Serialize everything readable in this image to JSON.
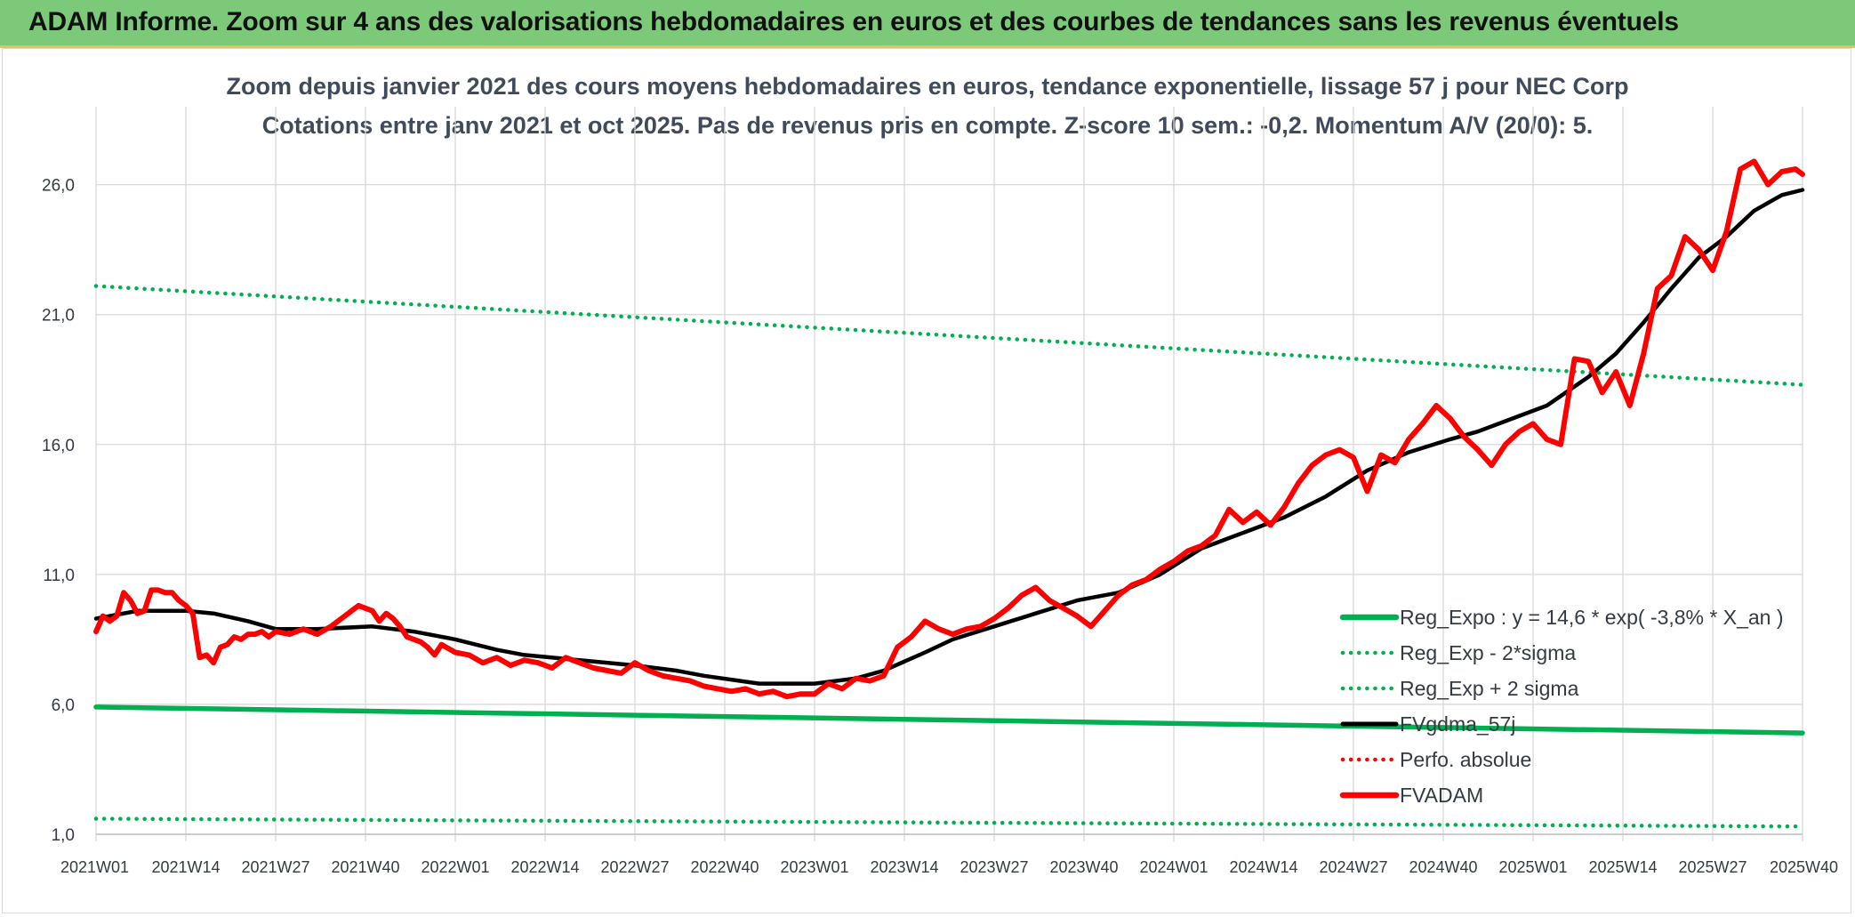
{
  "banner": {
    "title": "ADAM Informe. Zoom sur 4 ans des valorisations hebdomadaires en euros et des courbes de tendances sans les revenus éventuels",
    "color": "#7dc97a"
  },
  "chart_data": {
    "type": "line",
    "title": "Zoom depuis janvier 2021 des cours moyens hebdomadaires en euros, tendance exponentielle, lissage 57 j pour NEC Corp",
    "subtitle": "Cotations entre janv 2021 et oct 2025. Pas de revenus pris en compte. Z-score 10 sem.: -0,2. Momentum A/V (20/0): 5.",
    "xlabel": "",
    "ylabel": "",
    "ylim": [
      1,
      29
    ],
    "yticks": [
      "1,0",
      "6,0",
      "11,0",
      "16,0",
      "21,0",
      "26,0"
    ],
    "ytick_values": [
      1,
      6,
      11,
      16,
      21,
      26
    ],
    "x_ticks": [
      "2021W01",
      "2021W14",
      "2021W27",
      "2021W40",
      "2022W01",
      "2022W14",
      "2022W27",
      "2022W40",
      "2023W01",
      "2023W14",
      "2023W27",
      "2023W40",
      "2024W01",
      "2024W14",
      "2024W27",
      "2024W40",
      "2025W01",
      "2025W14",
      "2025W27",
      "2025W40"
    ],
    "x_unit": "week index since 2021W01 (2021W01 = 0, 2025W40 = 247)",
    "x_range": [
      0,
      247
    ],
    "grid": true,
    "legend_position": "bottom-right",
    "series": [
      {
        "name": "Reg_Expo : y = 14,6 * exp( -3,8% *  X_an )",
        "color": "#00b050",
        "style": "solid",
        "x": [
          0,
          247
        ],
        "y": [
          5.9,
          4.9
        ]
      },
      {
        "name": "Reg_Exp - 2*sigma",
        "color": "#00b050",
        "style": "dotted",
        "x": [
          0,
          247
        ],
        "y": [
          1.6,
          1.3
        ]
      },
      {
        "name": "Reg_Exp + 2 sigma",
        "color": "#00b050",
        "style": "dotted",
        "x": [
          0,
          247
        ],
        "y": [
          22.1,
          18.3
        ]
      },
      {
        "name": "FVgdma_57j",
        "color": "#000000",
        "style": "solid",
        "x": [
          0,
          6,
          13,
          17,
          22,
          26,
          32,
          40,
          46,
          52,
          58,
          62,
          70,
          78,
          84,
          88,
          96,
          104,
          110,
          114,
          120,
          124,
          130,
          136,
          142,
          148,
          154,
          160,
          166,
          172,
          178,
          184,
          190,
          196,
          200,
          204,
          210,
          216,
          220,
          224,
          228,
          232,
          236,
          240,
          244,
          247
        ],
        "y": [
          9.3,
          9.6,
          9.6,
          9.5,
          9.2,
          8.9,
          8.9,
          9.0,
          8.8,
          8.5,
          8.1,
          7.9,
          7.7,
          7.5,
          7.3,
          7.1,
          6.8,
          6.8,
          7.0,
          7.3,
          8.0,
          8.5,
          9.0,
          9.5,
          10.0,
          10.3,
          11.0,
          12.0,
          12.6,
          13.2,
          14.0,
          15.0,
          15.7,
          16.2,
          16.5,
          16.9,
          17.5,
          18.6,
          19.5,
          20.7,
          22.0,
          23.2,
          24.0,
          25.0,
          25.6,
          25.8
        ]
      },
      {
        "name": "Perfo. absolue",
        "color": "#ff0000",
        "style": "dotted",
        "x": [],
        "y": []
      },
      {
        "name": "FVADAM",
        "color": "#ff0000",
        "style": "solid",
        "x": [
          0,
          1,
          2,
          3,
          4,
          5,
          6,
          7,
          8,
          9,
          10,
          11,
          12,
          13,
          14,
          15,
          16,
          17,
          18,
          19,
          20,
          21,
          22,
          23,
          24,
          25,
          26,
          28,
          30,
          32,
          34,
          36,
          38,
          40,
          41,
          42,
          43,
          44,
          45,
          46,
          47,
          48,
          49,
          50,
          52,
          54,
          56,
          58,
          60,
          62,
          64,
          66,
          68,
          70,
          72,
          74,
          76,
          78,
          80,
          82,
          84,
          86,
          88,
          90,
          92,
          94,
          96,
          98,
          100,
          102,
          104,
          106,
          108,
          110,
          112,
          114,
          116,
          118,
          120,
          122,
          124,
          126,
          128,
          130,
          132,
          134,
          136,
          138,
          140,
          142,
          144,
          146,
          148,
          150,
          152,
          154,
          156,
          158,
          160,
          162,
          164,
          166,
          168,
          170,
          172,
          174,
          176,
          178,
          180,
          182,
          184,
          186,
          188,
          190,
          192,
          194,
          196,
          198,
          200,
          202,
          204,
          206,
          208,
          210,
          212,
          214,
          216,
          218,
          220,
          222,
          224,
          226,
          228,
          230,
          232,
          234,
          236,
          238,
          240,
          242,
          244,
          246,
          247
        ],
        "y": [
          8.8,
          9.4,
          9.2,
          9.4,
          10.3,
          10.0,
          9.5,
          9.6,
          10.4,
          10.4,
          10.3,
          10.3,
          10.0,
          9.8,
          9.5,
          7.8,
          7.9,
          7.6,
          8.2,
          8.3,
          8.6,
          8.5,
          8.7,
          8.7,
          8.8,
          8.6,
          8.8,
          8.7,
          8.9,
          8.7,
          9.0,
          9.4,
          9.8,
          9.6,
          9.2,
          9.5,
          9.3,
          9.0,
          8.6,
          8.5,
          8.4,
          8.2,
          7.9,
          8.3,
          8.0,
          7.9,
          7.6,
          7.8,
          7.5,
          7.7,
          7.6,
          7.4,
          7.8,
          7.6,
          7.4,
          7.3,
          7.2,
          7.6,
          7.3,
          7.1,
          7.0,
          6.9,
          6.7,
          6.6,
          6.5,
          6.6,
          6.4,
          6.5,
          6.3,
          6.4,
          6.4,
          6.8,
          6.6,
          7.0,
          6.9,
          7.1,
          8.2,
          8.6,
          9.2,
          8.9,
          8.7,
          8.9,
          9.0,
          9.3,
          9.7,
          10.2,
          10.5,
          10.0,
          9.7,
          9.4,
          9.0,
          9.6,
          10.2,
          10.6,
          10.8,
          11.2,
          11.5,
          11.9,
          12.1,
          12.5,
          13.5,
          13.0,
          13.4,
          12.9,
          13.6,
          14.5,
          15.2,
          15.6,
          15.8,
          15.5,
          14.2,
          15.6,
          15.3,
          16.2,
          16.8,
          17.5,
          17.0,
          16.3,
          15.8,
          15.2,
          16.0,
          16.5,
          16.8,
          16.2,
          16.0,
          19.3,
          19.2,
          18.0,
          18.8,
          17.5,
          19.5,
          22.0,
          22.5,
          24.0,
          23.5,
          22.7,
          24.2,
          26.6,
          26.9,
          26.0,
          26.5,
          26.6,
          26.4
        ]
      }
    ]
  }
}
